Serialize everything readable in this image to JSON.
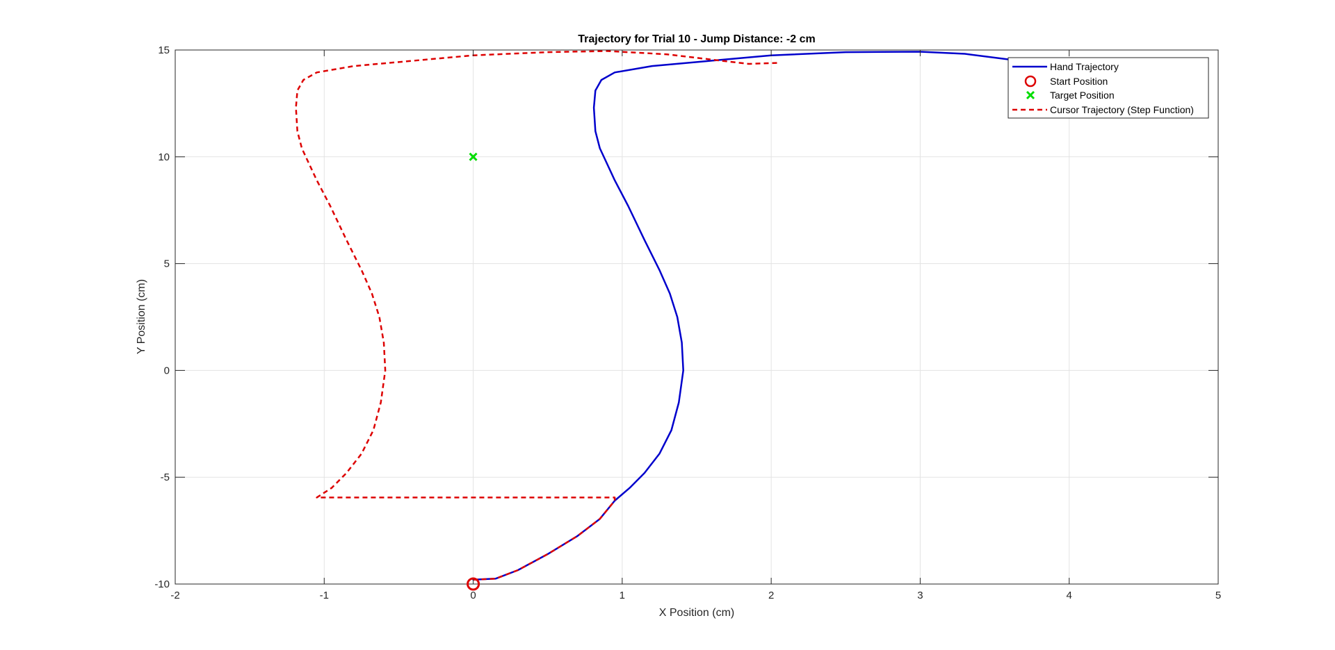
{
  "chart_data": {
    "type": "line",
    "title": "Trajectory for Trial 10 - Jump Distance: -2 cm",
    "xlabel": "X Position (cm)",
    "ylabel": "Y Position (cm)",
    "xlim": [
      -2,
      5
    ],
    "ylim": [
      -10,
      15
    ],
    "xticks": [
      -2,
      -1,
      0,
      1,
      2,
      3,
      4,
      5
    ],
    "yticks": [
      -10,
      -5,
      0,
      5,
      10,
      15
    ],
    "xtick_labels": [
      "-2",
      "-1",
      "0",
      "1",
      "2",
      "3",
      "4",
      "5"
    ],
    "ytick_labels": [
      "-10",
      "-5",
      "0",
      "5",
      "10",
      "15"
    ],
    "grid": true,
    "legend_position": "top-right",
    "legend": [
      "Hand Trajectory",
      "Start Position",
      "Target Position",
      "Cursor Trajectory (Step Function)"
    ],
    "series": [
      {
        "name": "Hand Trajectory",
        "style": "solid",
        "color": "#0000cc",
        "points": [
          [
            0,
            -9.8
          ],
          [
            0.15,
            -9.75
          ],
          [
            0.3,
            -9.35
          ],
          [
            0.5,
            -8.6
          ],
          [
            0.7,
            -7.75
          ],
          [
            0.85,
            -6.95
          ],
          [
            0.95,
            -6.1
          ],
          [
            1.05,
            -5.5
          ],
          [
            1.15,
            -4.8
          ],
          [
            1.25,
            -3.9
          ],
          [
            1.33,
            -2.8
          ],
          [
            1.38,
            -1.5
          ],
          [
            1.41,
            0
          ],
          [
            1.4,
            1.3
          ],
          [
            1.37,
            2.5
          ],
          [
            1.32,
            3.6
          ],
          [
            1.25,
            4.7
          ],
          [
            1.15,
            6.1
          ],
          [
            1.04,
            7.7
          ],
          [
            0.95,
            8.9
          ],
          [
            0.89,
            9.8
          ],
          [
            0.85,
            10.4
          ],
          [
            0.82,
            11.2
          ],
          [
            0.81,
            12.3
          ],
          [
            0.82,
            13.1
          ],
          [
            0.86,
            13.6
          ],
          [
            0.95,
            13.95
          ],
          [
            1.2,
            14.25
          ],
          [
            1.6,
            14.5
          ],
          [
            2.0,
            14.75
          ],
          [
            2.5,
            14.9
          ],
          [
            3.0,
            14.92
          ],
          [
            3.3,
            14.82
          ],
          [
            3.6,
            14.55
          ],
          [
            3.7,
            14.4
          ]
        ]
      },
      {
        "name": "Start Position",
        "marker": "o",
        "color": "#dd0000",
        "points": [
          [
            0,
            -10
          ]
        ]
      },
      {
        "name": "Target Position",
        "marker": "x",
        "color": "#00dd00",
        "points": [
          [
            0,
            10
          ]
        ]
      },
      {
        "name": "Cursor Trajectory (Step Function)",
        "style": "dashed",
        "color": "#dd0000",
        "points": [
          [
            0,
            -9.8
          ],
          [
            0.15,
            -9.75
          ],
          [
            0.3,
            -9.35
          ],
          [
            0.5,
            -8.6
          ],
          [
            0.7,
            -7.75
          ],
          [
            0.85,
            -6.95
          ],
          [
            0.95,
            -6.1
          ],
          [
            0.95,
            -5.95
          ],
          [
            -1.05,
            -5.95
          ],
          [
            -0.95,
            -5.5
          ],
          [
            -0.85,
            -4.8
          ],
          [
            -0.75,
            -3.9
          ],
          [
            -0.67,
            -2.8
          ],
          [
            -0.62,
            -1.5
          ],
          [
            -0.59,
            0
          ],
          [
            -0.6,
            1.3
          ],
          [
            -0.63,
            2.5
          ],
          [
            -0.68,
            3.6
          ],
          [
            -0.75,
            4.7
          ],
          [
            -0.85,
            6.1
          ],
          [
            -0.96,
            7.7
          ],
          [
            -1.05,
            8.9
          ],
          [
            -1.11,
            9.8
          ],
          [
            -1.15,
            10.4
          ],
          [
            -1.18,
            11.2
          ],
          [
            -1.19,
            12.3
          ],
          [
            -1.18,
            13.1
          ],
          [
            -1.14,
            13.6
          ],
          [
            -1.05,
            13.95
          ],
          [
            -0.8,
            14.25
          ],
          [
            -0.4,
            14.5
          ],
          [
            0,
            14.75
          ],
          [
            0.5,
            14.9
          ],
          [
            0.9,
            14.95
          ],
          [
            1.3,
            14.8
          ],
          [
            1.6,
            14.55
          ],
          [
            1.85,
            14.35
          ],
          [
            2.05,
            14.4
          ]
        ]
      }
    ]
  }
}
